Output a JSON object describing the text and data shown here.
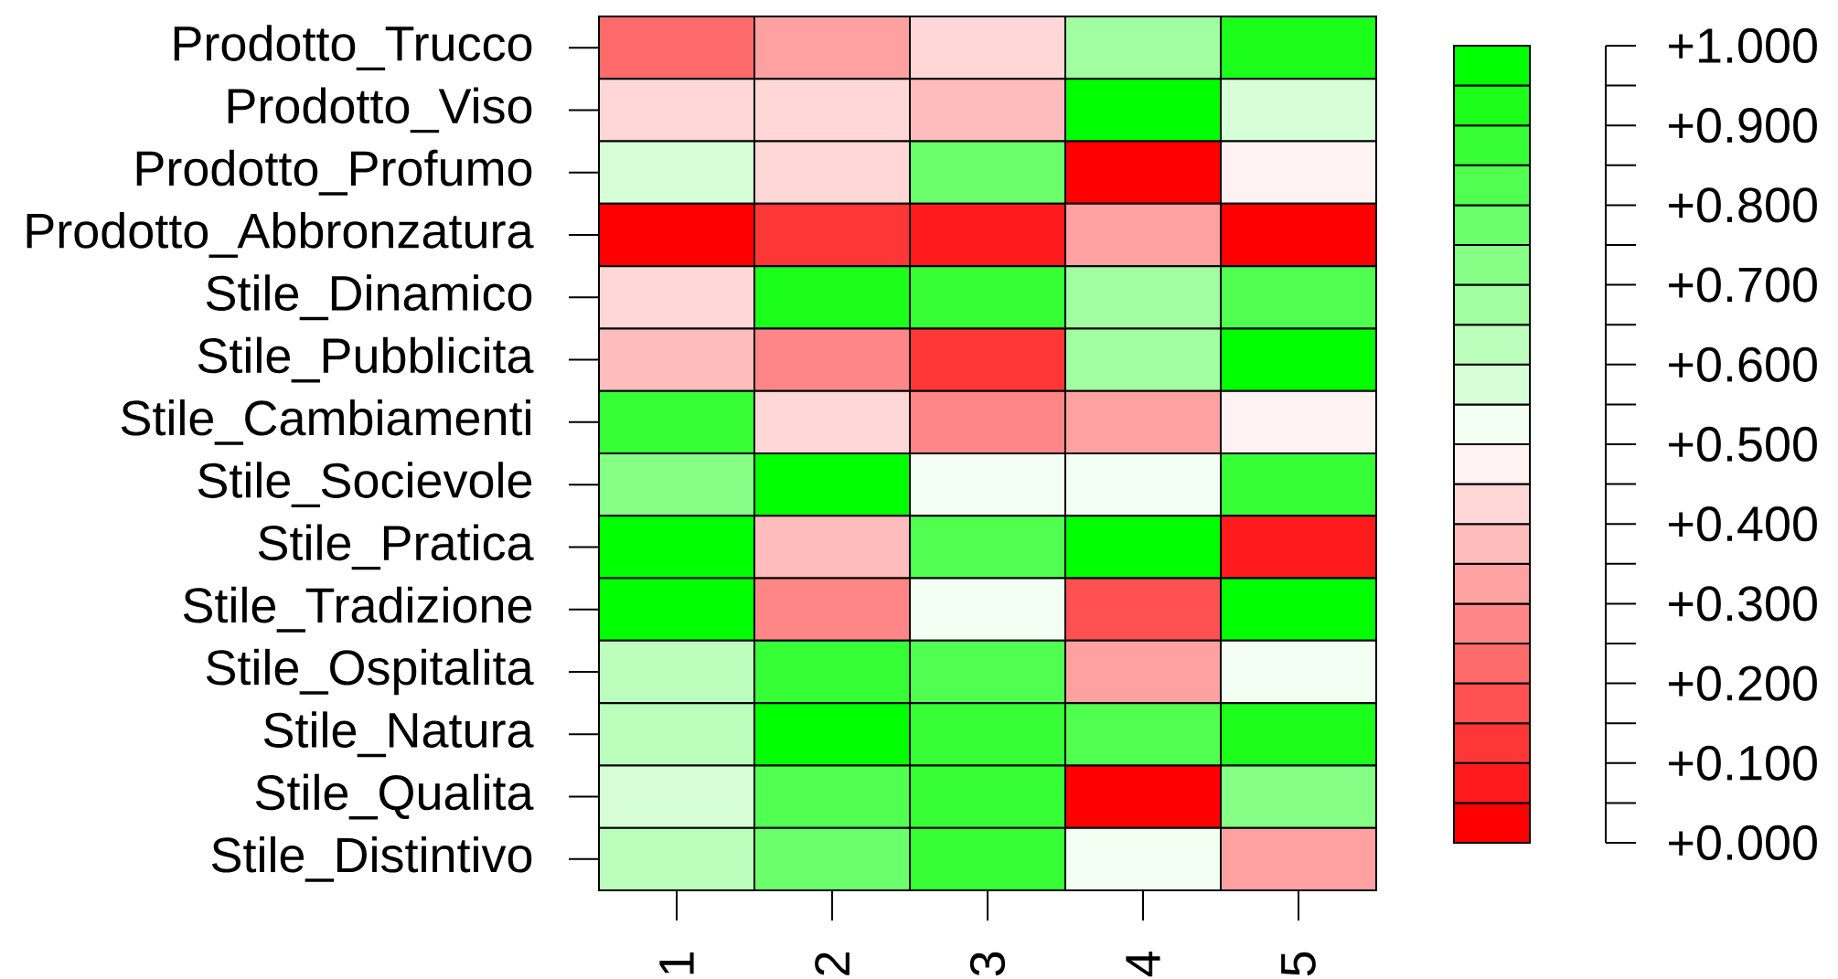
{
  "chart_data": {
    "type": "heatmap",
    "categories": [
      "1",
      "2",
      "3",
      "4",
      "5"
    ],
    "y_categories": [
      "Prodotto_Trucco",
      "Prodotto_Viso",
      "Prodotto_Profumo",
      "Prodotto_Abbronzatura",
      "Stile_Dinamico",
      "Stile_Pubblicita",
      "Stile_Cambiamenti",
      "Stile_Socievole",
      "Stile_Pratica",
      "Stile_Tradizione",
      "Stile_Ospitalita",
      "Stile_Natura",
      "Stile_Qualita",
      "Stile_Distintivo"
    ],
    "cells": [
      [
        0.23,
        0.33,
        0.43,
        0.68,
        0.93
      ],
      [
        0.43,
        0.43,
        0.38,
        0.98,
        0.58
      ],
      [
        0.58,
        0.43,
        0.78,
        0.03,
        0.48
      ],
      [
        0.03,
        0.13,
        0.08,
        0.33,
        0.03
      ],
      [
        0.43,
        0.93,
        0.88,
        0.68,
        0.83
      ],
      [
        0.38,
        0.28,
        0.13,
        0.68,
        0.98
      ],
      [
        0.88,
        0.43,
        0.28,
        0.33,
        0.48
      ],
      [
        0.73,
        0.98,
        0.53,
        0.53,
        0.88
      ],
      [
        0.98,
        0.38,
        0.83,
        0.98,
        0.08
      ],
      [
        0.98,
        0.28,
        0.53,
        0.18,
        0.98
      ],
      [
        0.63,
        0.88,
        0.83,
        0.33,
        0.53
      ],
      [
        0.63,
        0.98,
        0.88,
        0.83,
        0.93
      ],
      [
        0.58,
        0.83,
        0.88,
        0.03,
        0.73
      ],
      [
        0.63,
        0.78,
        0.88,
        0.53,
        0.33
      ]
    ],
    "clim": [
      0,
      1
    ],
    "cticks": [
      {
        "value": 0,
        "label": "+0.000"
      },
      {
        "value": 0.05,
        "label": null
      },
      {
        "value": 0.1,
        "label": "+0.100"
      },
      {
        "value": 0.15,
        "label": null
      },
      {
        "value": 0.2,
        "label": "+0.200"
      },
      {
        "value": 0.25,
        "label": null
      },
      {
        "value": 0.3,
        "label": "+0.300"
      },
      {
        "value": 0.35,
        "label": null
      },
      {
        "value": 0.4,
        "label": "+0.400"
      },
      {
        "value": 0.45,
        "label": null
      },
      {
        "value": 0.5,
        "label": "+0.500"
      },
      {
        "value": 0.55,
        "label": null
      },
      {
        "value": 0.6,
        "label": "+0.600"
      },
      {
        "value": 0.65,
        "label": null
      },
      {
        "value": 0.7,
        "label": "+0.700"
      },
      {
        "value": 0.75,
        "label": null
      },
      {
        "value": 0.8,
        "label": "+0.800"
      },
      {
        "value": 0.85,
        "label": null
      },
      {
        "value": 0.9,
        "label": "+0.900"
      },
      {
        "value": 0.95,
        "label": null
      },
      {
        "value": 1,
        "label": "+1.000"
      }
    ]
  }
}
